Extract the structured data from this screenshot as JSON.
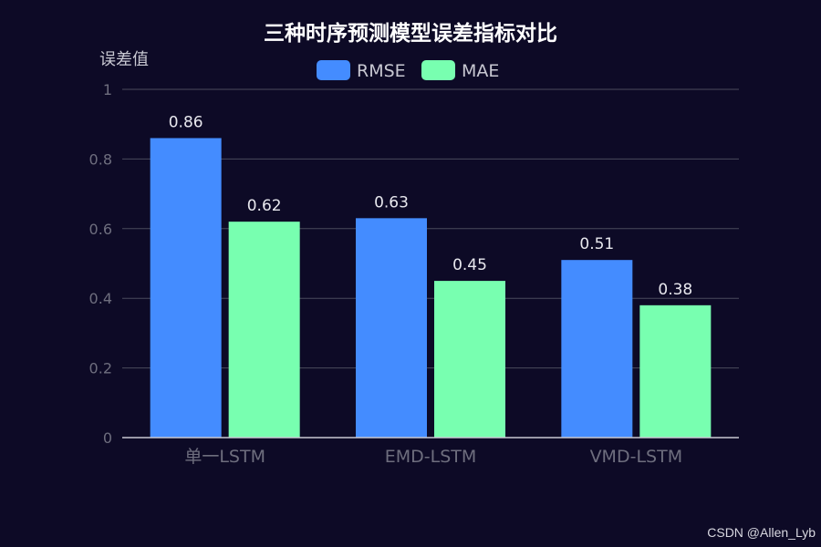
{
  "chart_data": {
    "type": "bar",
    "title": "三种时序预测模型误差指标对比",
    "ylabel": "误差值",
    "xlabel": "",
    "categories": [
      "单一LSTM",
      "EMD-LSTM",
      "VMD-LSTM"
    ],
    "series": [
      {
        "name": "RMSE",
        "values": [
          0.86,
          0.63,
          0.51
        ],
        "color": "#448cff"
      },
      {
        "name": "MAE",
        "values": [
          0.62,
          0.45,
          0.38
        ],
        "color": "#78ffb0"
      }
    ],
    "ylim": [
      0,
      1
    ],
    "yticks": [
      "0",
      "0.2",
      "0.4",
      "0.6",
      "0.8",
      "1"
    ],
    "grid": true,
    "legend_position": "top-center",
    "colors": {
      "background": "#0d0a26",
      "title": "#ffffff",
      "axis_label": "#c8c8d2",
      "tick_label": "#6e6e7e",
      "category_label": "#6e6e7e",
      "grid": "#4a4a5c",
      "axis_line": "#c8c8d2",
      "value_label": "#e8e8ee",
      "legend_text": "#c8c8d2"
    }
  },
  "watermark": "CSDN @Allen_Lyb"
}
